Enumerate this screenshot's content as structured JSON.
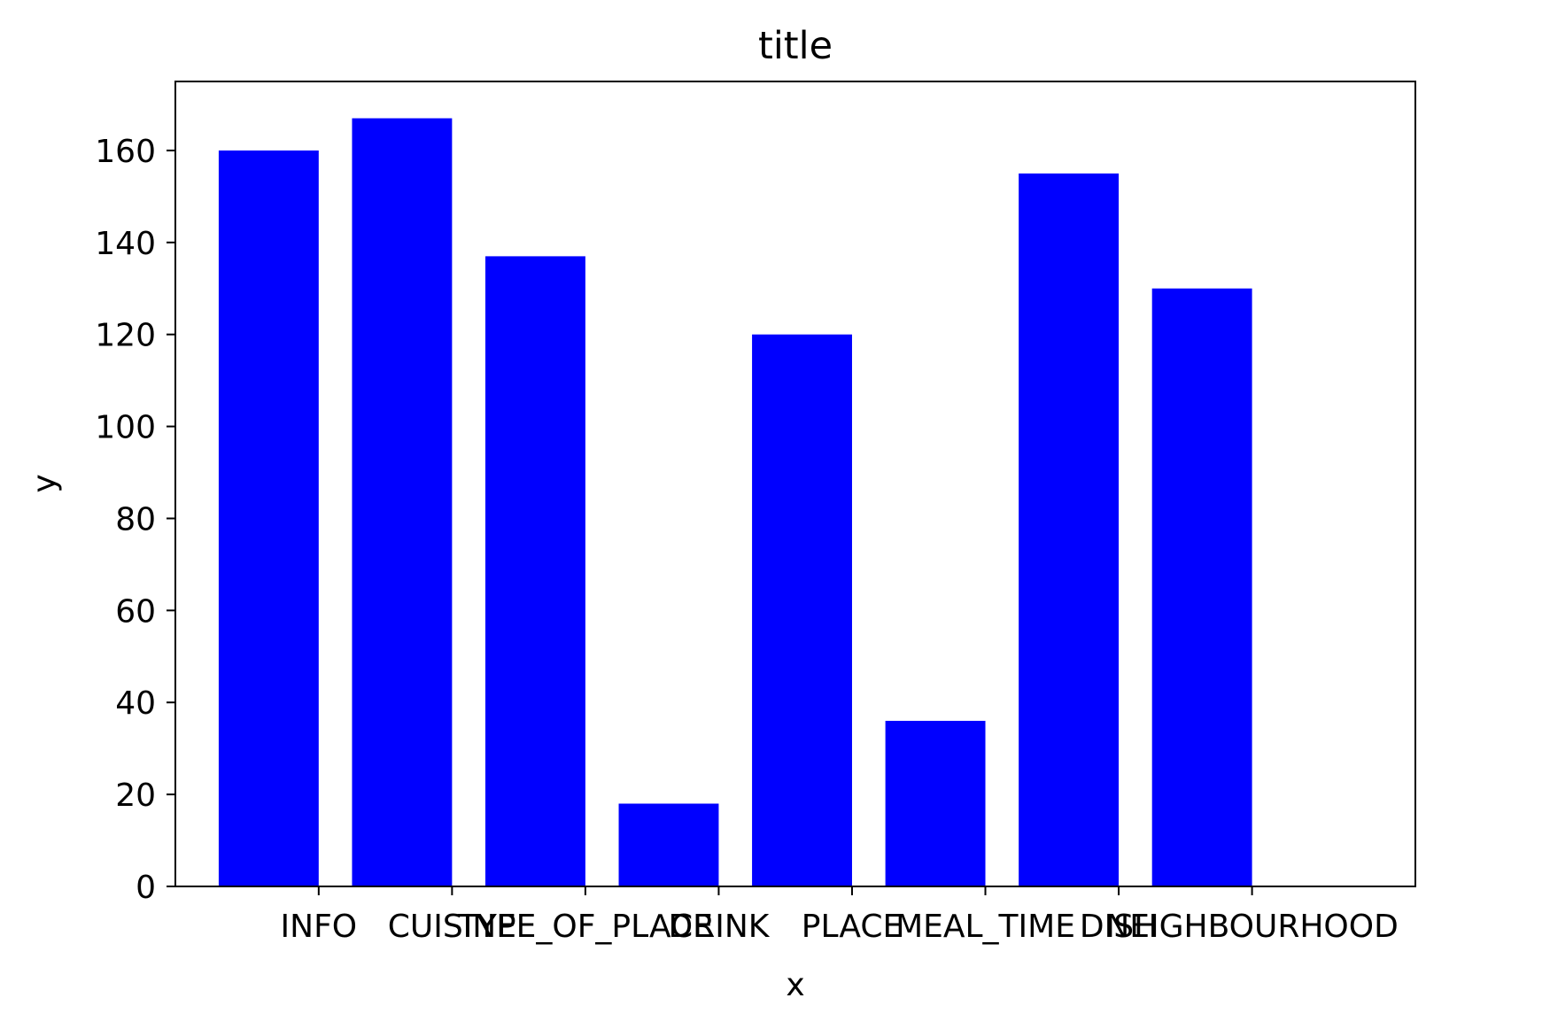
{
  "chart_data": {
    "type": "bar",
    "title": "title",
    "xlabel": "x",
    "ylabel": "y",
    "categories": [
      "INFO",
      "CUISINE",
      "TYPE_OF_PLACE",
      "DRINK",
      "PLACE",
      "MEAL_TIME",
      "DISH",
      "NEIGHBOURHOOD"
    ],
    "values": [
      160,
      167,
      137,
      18,
      120,
      36,
      155,
      130
    ],
    "ylim": [
      0,
      175
    ],
    "yticks": [
      0,
      20,
      40,
      60,
      80,
      100,
      120,
      140,
      160
    ],
    "bar_color": "#0000ff",
    "grid": false,
    "legend": "none"
  }
}
